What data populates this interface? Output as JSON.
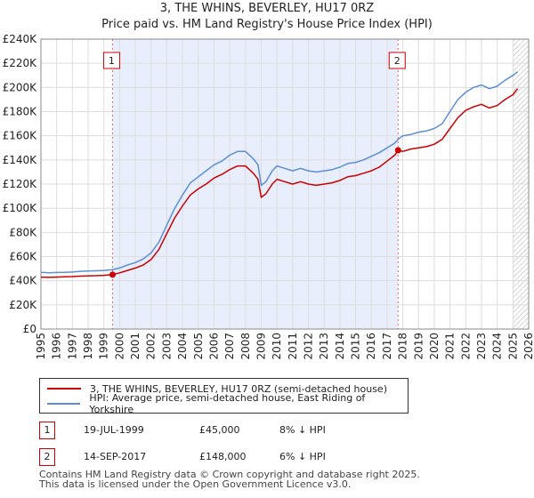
{
  "header": {
    "title": "3, THE WHINS, BEVERLEY, HU17 0RZ",
    "subtitle": "Price paid vs. HM Land Registry's House Price Index (HPI)"
  },
  "chart_data": {
    "type": "line",
    "title": "3, THE WHINS, BEVERLEY, HU17 0RZ",
    "subtitle": "Price paid vs. HM Land Registry's House Price Index (HPI)",
    "xlabel": "",
    "ylabel": "",
    "xlim": [
      1995,
      2026
    ],
    "ylim": [
      0,
      240000
    ],
    "grid": true,
    "x_ticks": [
      "1995",
      "1996",
      "1997",
      "1998",
      "1999",
      "2000",
      "2001",
      "2002",
      "2003",
      "2004",
      "2005",
      "2006",
      "2007",
      "2008",
      "2009",
      "2010",
      "2011",
      "2012",
      "2013",
      "2014",
      "2015",
      "2016",
      "2017",
      "2018",
      "2019",
      "2020",
      "2021",
      "2022",
      "2023",
      "2024",
      "2025",
      "2026"
    ],
    "y_ticks": [
      "£0",
      "£20K",
      "£40K",
      "£60K",
      "£80K",
      "£100K",
      "£120K",
      "£140K",
      "£160K",
      "£180K",
      "£200K",
      "£220K",
      "£240K"
    ],
    "colors": {
      "hpi": "#5b8ed6",
      "price": "#cc0000",
      "band": "#e8eefb",
      "grid": "#dddddd",
      "vline": "#dd6666"
    },
    "sale_band": {
      "from": 1999.55,
      "to": 2017.7
    },
    "future_hatch_from": 2025.0,
    "series": [
      {
        "name": "HPI: Average price, semi-detached house, East Riding of Yorkshire",
        "key": "hpi",
        "x": [
          1995,
          1995.5,
          1996,
          1996.5,
          1997,
          1997.5,
          1998,
          1998.5,
          1999,
          1999.5,
          2000,
          2000.5,
          2001,
          2001.5,
          2002,
          2002.5,
          2003,
          2003.5,
          2004,
          2004.5,
          2005,
          2005.5,
          2006,
          2006.5,
          2007,
          2007.5,
          2008,
          2008.5,
          2008.8,
          2009,
          2009.3,
          2009.7,
          2010,
          2010.5,
          2011,
          2011.5,
          2012,
          2012.5,
          2013,
          2013.5,
          2014,
          2014.5,
          2015,
          2015.5,
          2016,
          2016.5,
          2017,
          2017.5,
          2017.7,
          2018,
          2018.5,
          2019,
          2019.5,
          2020,
          2020.5,
          2021,
          2021.5,
          2022,
          2022.5,
          2023,
          2023.5,
          2024,
          2024.5,
          2025,
          2025.3
        ],
        "values": [
          47000,
          46500,
          46800,
          47000,
          47200,
          47800,
          48000,
          48200,
          48500,
          49000,
          50500,
          53000,
          55000,
          58000,
          63000,
          72000,
          86000,
          100000,
          111000,
          121000,
          126000,
          131000,
          136000,
          139000,
          144000,
          147000,
          147000,
          141000,
          136000,
          119000,
          122000,
          131000,
          135000,
          133000,
          131000,
          133000,
          131000,
          130000,
          131000,
          132000,
          134000,
          137000,
          138000,
          140000,
          143000,
          146000,
          150000,
          154000,
          157000,
          160000,
          161000,
          163000,
          164000,
          166000,
          170000,
          180000,
          190000,
          196000,
          200000,
          202000,
          199000,
          201000,
          206000,
          210000,
          213000
        ]
      },
      {
        "name": "3, THE WHINS, BEVERLEY, HU17 0RZ (semi-detached house)",
        "key": "price",
        "x": [
          1995,
          1995.5,
          1996,
          1996.5,
          1997,
          1997.5,
          1998,
          1998.5,
          1999,
          1999.55,
          2000,
          2000.5,
          2001,
          2001.5,
          2002,
          2002.5,
          2003,
          2003.5,
          2004,
          2004.5,
          2005,
          2005.5,
          2006,
          2006.5,
          2007,
          2007.5,
          2008,
          2008.5,
          2008.8,
          2009,
          2009.3,
          2009.7,
          2010,
          2010.5,
          2011,
          2011.5,
          2012,
          2012.5,
          2013,
          2013.5,
          2014,
          2014.5,
          2015,
          2015.5,
          2016,
          2016.5,
          2017,
          2017.5,
          2017.7,
          2018,
          2018.5,
          2019,
          2019.5,
          2020,
          2020.5,
          2021,
          2021.5,
          2022,
          2022.5,
          2023,
          2023.5,
          2024,
          2024.5,
          2025,
          2025.3
        ],
        "values": [
          43000,
          42800,
          43000,
          43200,
          43400,
          43800,
          44000,
          44200,
          44500,
          45000,
          46500,
          48500,
          50500,
          53000,
          57500,
          66000,
          79000,
          92000,
          102000,
          111000,
          116000,
          120000,
          125000,
          128000,
          132000,
          135000,
          135000,
          129000,
          124000,
          109000,
          112000,
          120000,
          124000,
          122000,
          120000,
          122000,
          120000,
          119000,
          120000,
          121000,
          123000,
          126000,
          127000,
          129000,
          131000,
          134000,
          139000,
          144000,
          148000,
          147000,
          149000,
          150000,
          151000,
          153000,
          157000,
          166000,
          175000,
          181000,
          184000,
          186000,
          183000,
          185000,
          190000,
          194000,
          199000
        ]
      }
    ],
    "annotations": [
      {
        "label": "1",
        "x": 1999.55
      },
      {
        "label": "2",
        "x": 2017.7
      }
    ],
    "sale_points": [
      {
        "x": 1999.55,
        "y": 45000
      },
      {
        "x": 2017.7,
        "y": 148000
      }
    ]
  },
  "legend": {
    "items": [
      {
        "label": "3, THE WHINS, BEVERLEY, HU17 0RZ (semi-detached house)",
        "color": "#cc0000"
      },
      {
        "label": "HPI: Average price, semi-detached house, East Riding of Yorkshire",
        "color": "#5b8ed6"
      }
    ]
  },
  "transactions": [
    {
      "num": "1",
      "date": "19-JUL-1999",
      "price": "£45,000",
      "hpi": "8% ↓ HPI"
    },
    {
      "num": "2",
      "date": "14-SEP-2017",
      "price": "£148,000",
      "hpi": "6% ↓ HPI"
    }
  ],
  "footer": {
    "line1": "Contains HM Land Registry data © Crown copyright and database right 2025.",
    "line2": "This data is licensed under the Open Government Licence v3.0."
  }
}
